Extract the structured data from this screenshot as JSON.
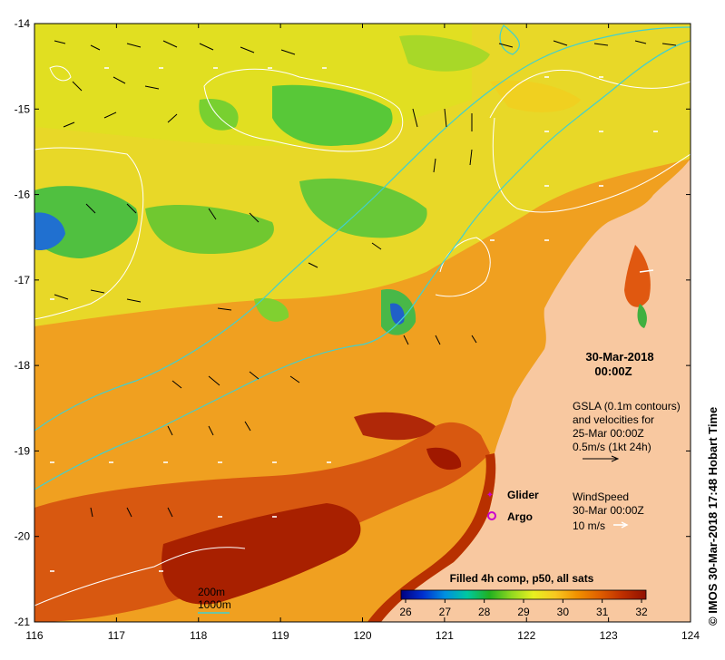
{
  "map": {
    "x_axis_ticks": [
      "116",
      "117",
      "118",
      "119",
      "120",
      "121",
      "122",
      "123",
      "124"
    ],
    "y_axis_ticks": [
      "-14",
      "-15",
      "-16",
      "-17",
      "-18",
      "-19",
      "-20",
      "-21"
    ],
    "lon_range": [
      116,
      124
    ],
    "lat_range": [
      -21,
      -14
    ]
  },
  "date_label": {
    "line1": "30-Mar-2018",
    "line2": "00:00Z"
  },
  "gsla_note": {
    "line1": "GSLA (0.1m contours)",
    "line2": "and velocities for",
    "line3": "25-Mar 00:00Z",
    "line4": "0.5m/s (1kt 24h)"
  },
  "legend_markers": {
    "glider": "Glider",
    "argo": "Argo",
    "glider_color": "#cc00cc",
    "argo_color": "#cc00cc"
  },
  "wind_note": {
    "line1": "WindSpeed",
    "line2": "30-Mar 00:00Z",
    "line3": "10 m/s"
  },
  "bathy_legend": {
    "line1": "200m",
    "line2": "1000m",
    "contour_color": "#40d0d0"
  },
  "colorbar": {
    "title": "Filled 4h comp, p50, all sats",
    "ticks": [
      "26",
      "27",
      "28",
      "29",
      "30",
      "31",
      "32"
    ],
    "range": [
      26,
      32
    ],
    "colors": [
      "#000080",
      "#0030d0",
      "#0090e0",
      "#00c8a0",
      "#20b020",
      "#90d820",
      "#e8f020",
      "#f8c820",
      "#f09000",
      "#e06000",
      "#c03000",
      "#901000"
    ]
  },
  "credit": "© IMOS 30-Mar-2018 17:48 Hobart Time",
  "colors": {
    "land": "#f8c8a0",
    "gsla_contour": "#ffffff",
    "bathy_contour": "#40d0d0"
  }
}
